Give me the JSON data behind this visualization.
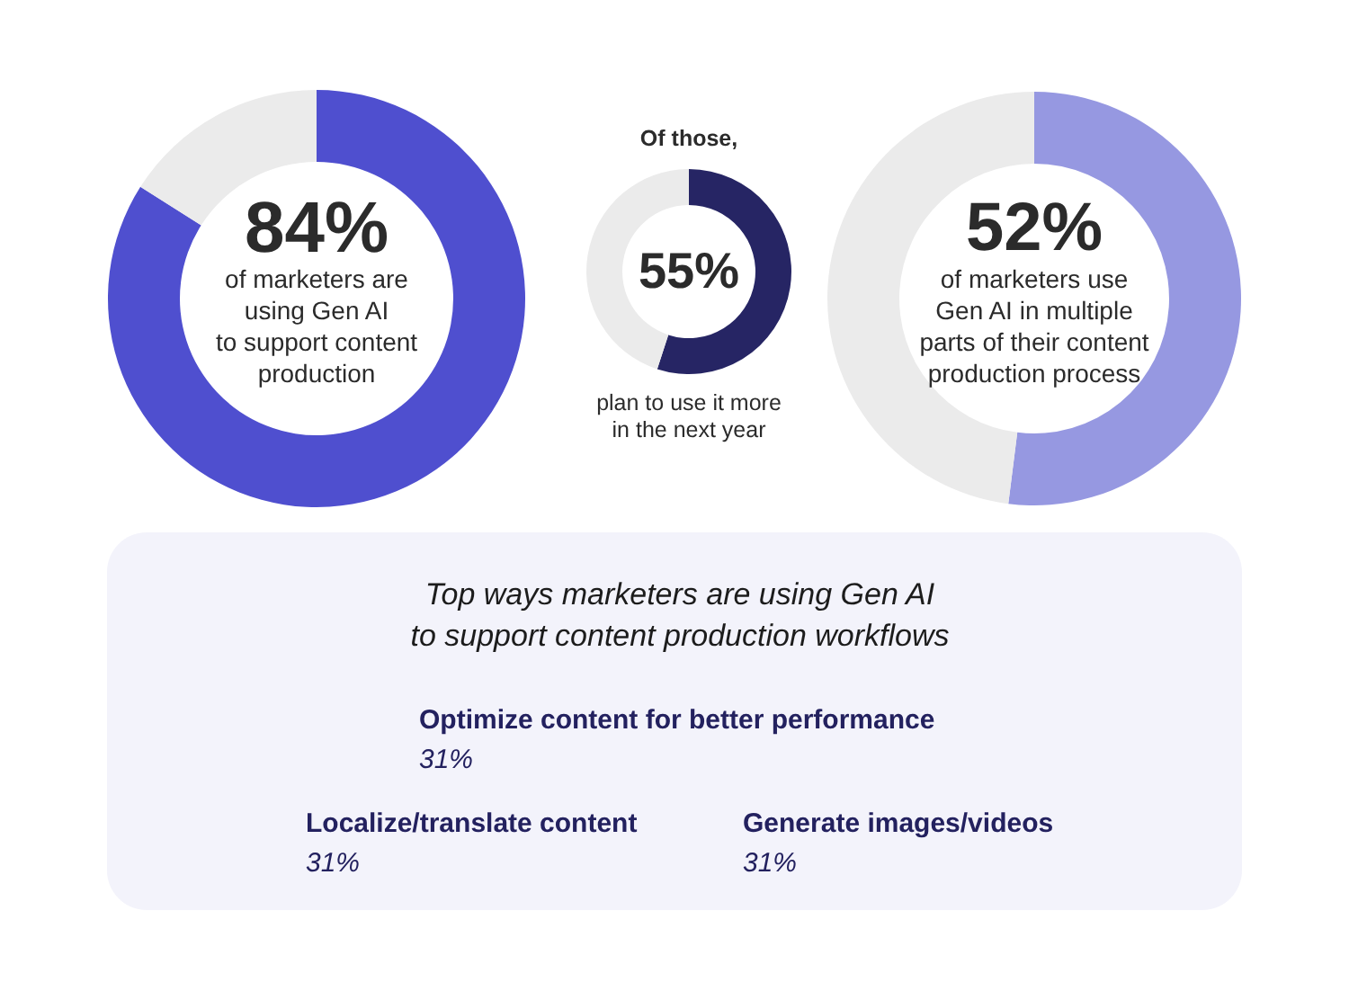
{
  "chart_data": [
    {
      "type": "donut",
      "categories": [
        null,
        null
      ],
      "values": [
        84,
        16
      ],
      "colors": [
        "#4f4fcf",
        "#ebebeb"
      ],
      "value_labels": [
        "84%",
        null
      ],
      "annotations": [
        "of marketers are\nusing Gen AI\nto support content\nproduction"
      ]
    },
    {
      "type": "donut",
      "title": "Of those,",
      "categories": [
        null,
        null
      ],
      "values": [
        55,
        45
      ],
      "colors": [
        "#262564",
        "#ebebeb"
      ],
      "value_labels": [
        "55%",
        null
      ],
      "annotations": [
        "plan to use it more\nin the next year"
      ]
    },
    {
      "type": "donut",
      "categories": [
        null,
        null
      ],
      "values": [
        52,
        48
      ],
      "colors": [
        "#9698e1",
        "#ebebeb"
      ],
      "value_labels": [
        "52%",
        null
      ],
      "annotations": [
        "of marketers use\nGen AI in multiple\nparts of their content\nproduction process"
      ]
    },
    {
      "type": "other",
      "title": "Top ways marketers are using Gen AI\nto support content production workflows",
      "annotations": [
        "Optimize content for better performance",
        "31%",
        "Localize/translate content",
        "31%",
        "Generate images/videos",
        "31%"
      ]
    }
  ]
}
